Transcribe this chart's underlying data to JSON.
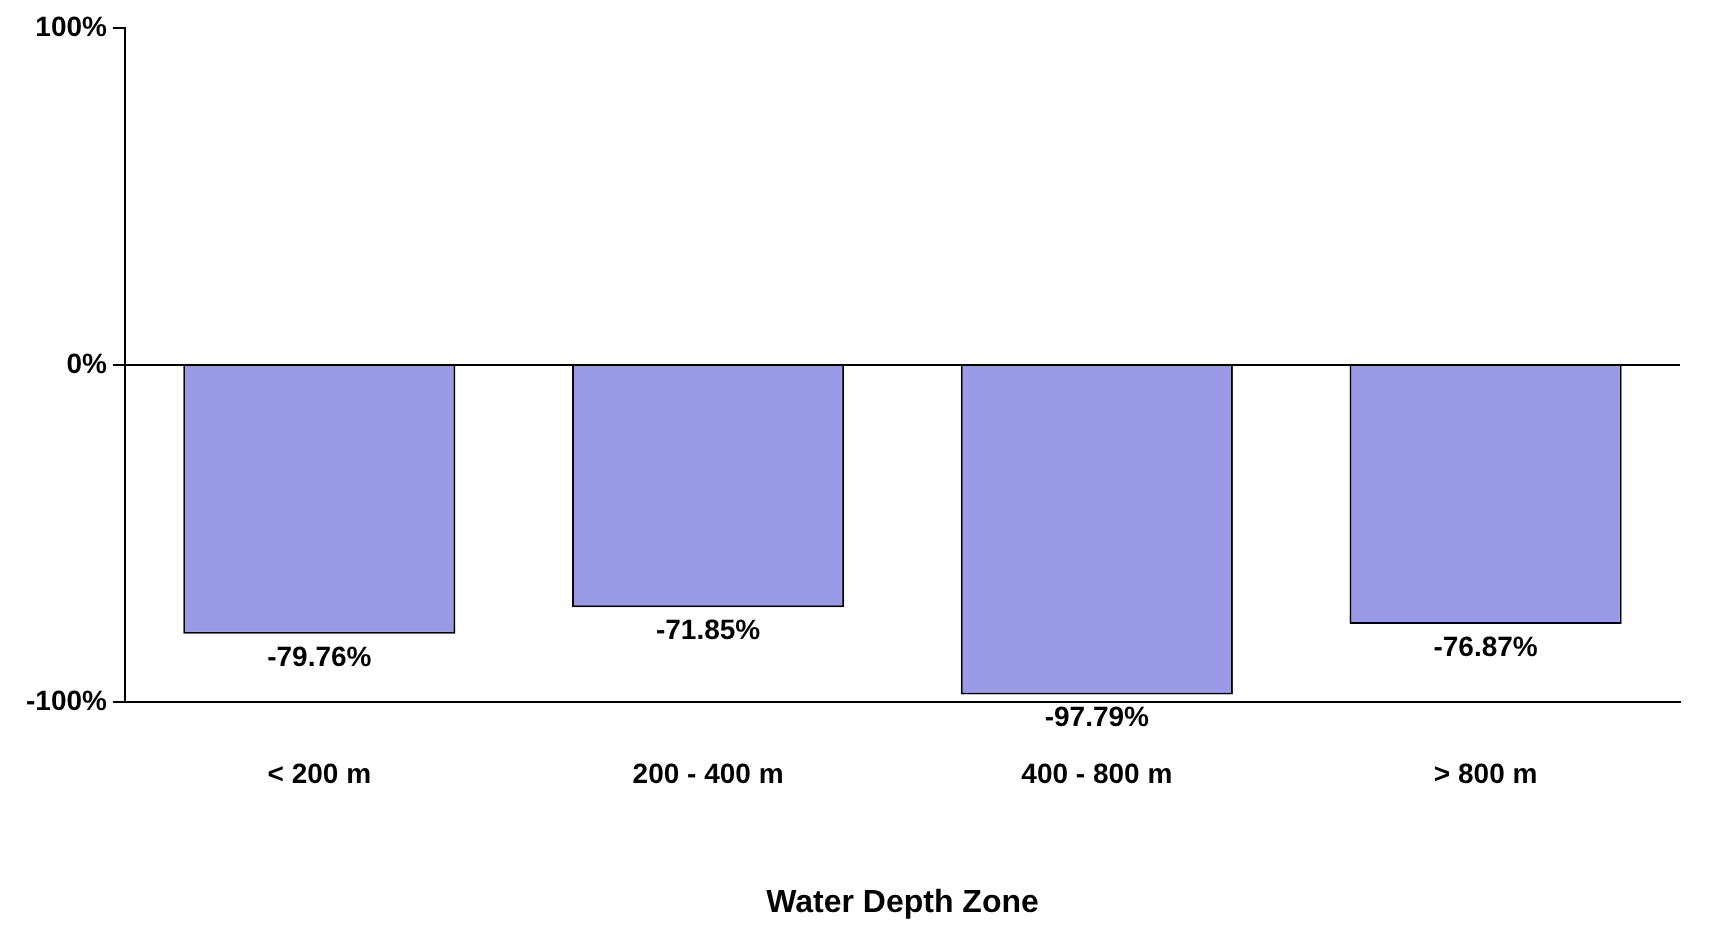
{
  "chart_data": {
    "type": "bar",
    "xlabel": "Water Depth Zone",
    "categories": [
      "< 200 m",
      "200 - 400 m",
      "400 - 800 m",
      "> 800 m"
    ],
    "values": [
      -79.76,
      -71.85,
      -97.79,
      -76.87
    ],
    "color": "#9999e6",
    "value_labels": [
      "-79.76%",
      "-71.85%",
      "-97.79%",
      "-76.87%"
    ],
    "ylim": [
      -100,
      100
    ],
    "yticks": [
      {
        "value": -100,
        "label": "-100%"
      },
      {
        "value": 0,
        "label": "0%"
      },
      {
        "value": 100,
        "label": "100%"
      }
    ],
    "ref_lines": [
      {
        "axis": "y",
        "value": 0,
        "color": "#000000"
      }
    ],
    "grid": false,
    "legend": false
  }
}
